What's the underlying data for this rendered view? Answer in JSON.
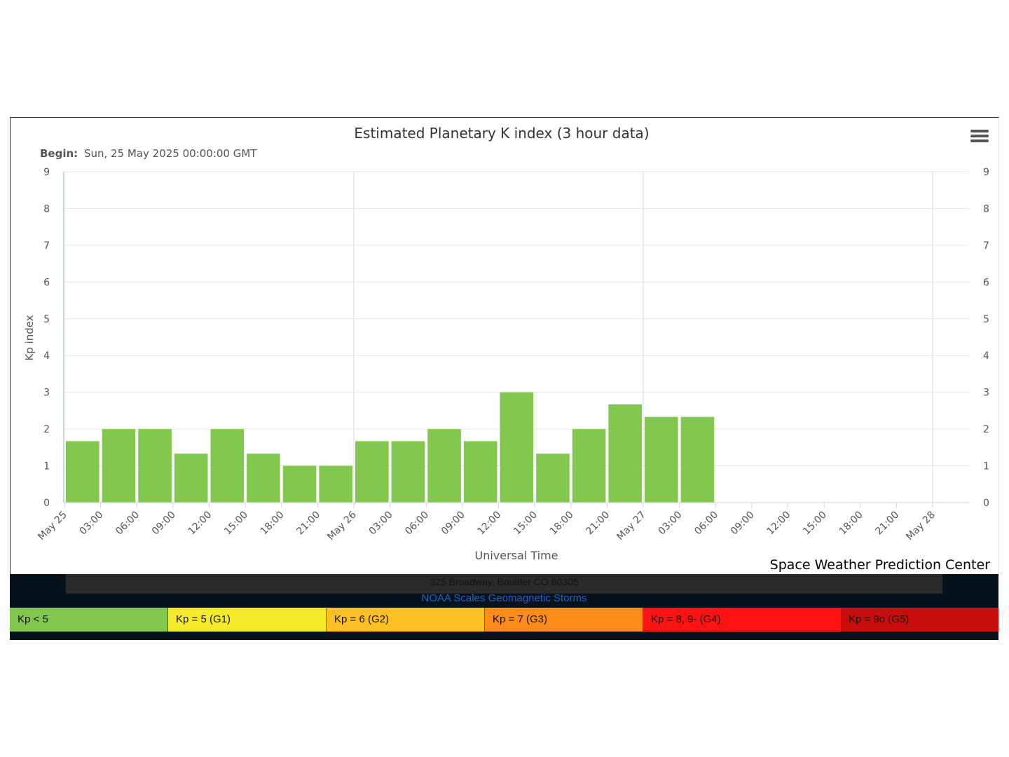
{
  "chart_data": {
    "type": "bar",
    "title": "Estimated Planetary K index (3 hour data)",
    "begin_label": "Begin:",
    "begin_value": "Sun, 25 May 2025 00:00:00 GMT",
    "xlabel": "Universal Time",
    "ylabel": "Kp index",
    "ylim": [
      0,
      9
    ],
    "y_ticks": [
      0,
      1,
      2,
      3,
      4,
      5,
      6,
      7,
      8,
      9
    ],
    "x_tick_labels": [
      "May 25",
      "03:00",
      "06:00",
      "09:00",
      "12:00",
      "15:00",
      "18:00",
      "21:00",
      "May 26",
      "03:00",
      "06:00",
      "09:00",
      "12:00",
      "15:00",
      "18:00",
      "21:00",
      "May 27",
      "03:00",
      "06:00",
      "09:00",
      "12:00",
      "15:00",
      "18:00",
      "21:00",
      "May 28"
    ],
    "values": [
      1.67,
      2.0,
      2.0,
      1.33,
      2.0,
      1.33,
      1.0,
      1.0,
      1.67,
      1.67,
      2.0,
      1.67,
      3.0,
      1.33,
      2.0,
      2.67,
      2.33,
      2.33
    ],
    "bar_color": "#82c84f",
    "grid": true,
    "legend": "none"
  },
  "credit": "Space Weather Prediction Center",
  "footer": {
    "address": "325 Broadway, Boulder CO 80305",
    "scales_link": "NOAA Scales Geomagnetic Storms"
  },
  "scale_bar": [
    {
      "label": "Kp < 5",
      "color": "#82c84f"
    },
    {
      "label": "Kp = 5 (G1)",
      "color": "#f6eb2b"
    },
    {
      "label": "Kp = 6 (G2)",
      "color": "#fdc024"
    },
    {
      "label": "Kp = 7 (G3)",
      "color": "#fd8c1a"
    },
    {
      "label": "Kp = 8, 9- (G4)",
      "color": "#fe1212"
    },
    {
      "label": "Kp = 9o (G5)",
      "color": "#c80d0d"
    }
  ]
}
